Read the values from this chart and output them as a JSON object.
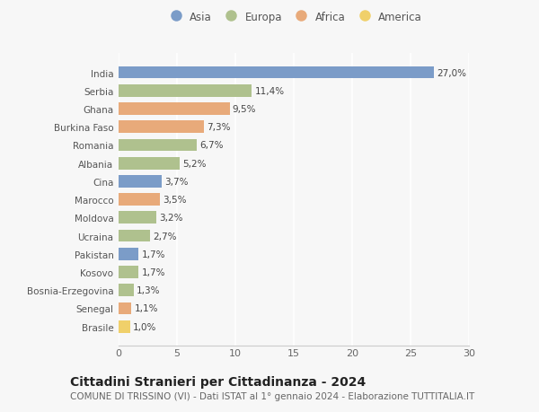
{
  "countries": [
    "India",
    "Serbia",
    "Ghana",
    "Burkina Faso",
    "Romania",
    "Albania",
    "Cina",
    "Marocco",
    "Moldova",
    "Ucraina",
    "Pakistan",
    "Kosovo",
    "Bosnia-Erzegovina",
    "Senegal",
    "Brasile"
  ],
  "values": [
    27.0,
    11.4,
    9.5,
    7.3,
    6.7,
    5.2,
    3.7,
    3.5,
    3.2,
    2.7,
    1.7,
    1.7,
    1.3,
    1.1,
    1.0
  ],
  "labels": [
    "27,0%",
    "11,4%",
    "9,5%",
    "7,3%",
    "6,7%",
    "5,2%",
    "3,7%",
    "3,5%",
    "3,2%",
    "2,7%",
    "1,7%",
    "1,7%",
    "1,3%",
    "1,1%",
    "1,0%"
  ],
  "continents": [
    "Asia",
    "Europa",
    "Africa",
    "Africa",
    "Europa",
    "Europa",
    "Asia",
    "Africa",
    "Europa",
    "Europa",
    "Asia",
    "Europa",
    "Europa",
    "Africa",
    "America"
  ],
  "colors": {
    "Asia": "#7b9cc8",
    "Europa": "#afc18e",
    "Africa": "#e8aa7a",
    "America": "#f0d06a"
  },
  "xlim": [
    0,
    30
  ],
  "xticks": [
    0,
    5,
    10,
    15,
    20,
    25,
    30
  ],
  "title": "Cittadini Stranieri per Cittadinanza - 2024",
  "subtitle": "COMUNE DI TRISSINO (VI) - Dati ISTAT al 1° gennaio 2024 - Elaborazione TUTTITALIA.IT",
  "background_color": "#f7f7f7",
  "grid_color": "#ffffff",
  "bar_height": 0.68,
  "label_fontsize": 7.5,
  "title_fontsize": 10,
  "subtitle_fontsize": 7.5,
  "ytick_fontsize": 7.5,
  "xtick_fontsize": 8,
  "legend_order": [
    "Asia",
    "Europa",
    "Africa",
    "America"
  ]
}
